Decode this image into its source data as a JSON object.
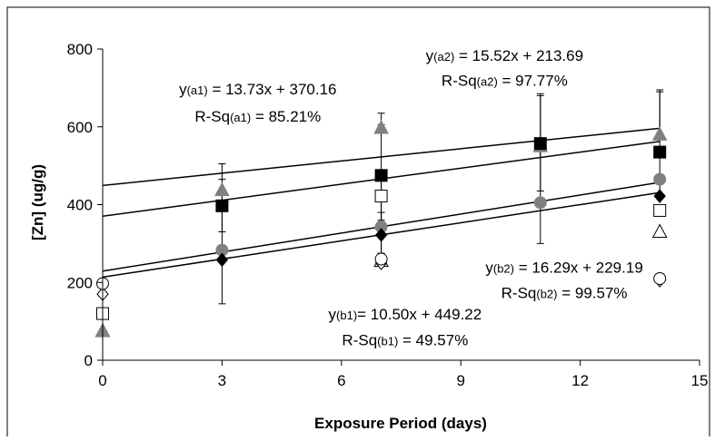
{
  "chart_data": {
    "type": "scatter",
    "xlabel": "Exposure Period (days)",
    "ylabel": "[Zn] (ug/g)",
    "xlim": [
      0,
      15
    ],
    "ylim": [
      0,
      800
    ],
    "xticks": [
      "0",
      "3",
      "6",
      "9",
      "12",
      "15"
    ],
    "yticks": [
      "0",
      "200",
      "400",
      "600",
      "800"
    ],
    "grid": false,
    "legend": "none",
    "series": [
      {
        "marker": "triangle",
        "fill": "#808080",
        "points": [
          [
            0,
            75
          ],
          [
            3,
            437
          ],
          [
            7,
            597
          ],
          [
            11,
            550
          ],
          [
            14,
            580
          ]
        ],
        "errors": [
          [
            3,
            440,
            505
          ],
          [
            7,
            597,
            635
          ],
          [
            11,
            550,
            685
          ],
          [
            14,
            580,
            695
          ]
        ]
      },
      {
        "marker": "square",
        "fill": "#000000",
        "points": [
          [
            3,
            397
          ],
          [
            7,
            475
          ],
          [
            11,
            557
          ],
          [
            14,
            535
          ]
        ],
        "errors": [
          [
            3,
            330,
            465
          ],
          [
            7,
            415,
            605
          ],
          [
            11,
            435,
            680
          ],
          [
            14,
            420,
            690
          ]
        ]
      },
      {
        "marker": "circle",
        "fill": "#808080",
        "points": [
          [
            3,
            283
          ],
          [
            7,
            343
          ],
          [
            11,
            405
          ],
          [
            14,
            465
          ]
        ],
        "errors": [
          [
            3,
            145,
            425
          ],
          [
            7,
            265,
            425
          ],
          [
            11,
            300,
            555
          ]
        ]
      },
      {
        "marker": "diamond",
        "fill": "#000000",
        "points": [
          [
            3,
            258
          ],
          [
            7,
            322
          ],
          [
            14,
            422
          ]
        ],
        "errors": [
          [
            7,
            275,
            380
          ]
        ]
      },
      {
        "marker": "square",
        "fill": "#ffffff",
        "points": [
          [
            0,
            120
          ],
          [
            7,
            422
          ],
          [
            14,
            385
          ]
        ],
        "errors": [
          [
            7,
            360,
            485
          ]
        ]
      },
      {
        "marker": "triangle",
        "fill": "#ffffff",
        "points": [
          [
            0,
            75
          ],
          [
            7,
            255
          ],
          [
            14,
            330
          ]
        ]
      },
      {
        "marker": "diamond",
        "fill": "#ffffff",
        "points": [
          [
            0,
            170
          ],
          [
            7,
            250
          ],
          [
            14,
            205
          ]
        ]
      },
      {
        "marker": "circle",
        "fill": "#ffffff",
        "points": [
          [
            0,
            197
          ],
          [
            7,
            260
          ],
          [
            14,
            210
          ]
        ]
      }
    ],
    "trendlines": [
      {
        "slope": 10.5,
        "intercept": 449.22,
        "x": [
          0,
          14
        ]
      },
      {
        "slope": 13.73,
        "intercept": 370.16,
        "x": [
          0,
          14
        ]
      },
      {
        "slope": 16.29,
        "intercept": 229.19,
        "x": [
          0,
          14
        ]
      },
      {
        "slope": 15.52,
        "intercept": 213.69,
        "x": [
          0,
          14
        ]
      }
    ],
    "annotations": [
      {
        "id": "a1",
        "x": 3.9,
        "y1": 683,
        "y2": 613,
        "line1": [
          {
            "t": "y"
          },
          {
            "t": "(a1)",
            "sub": true
          },
          {
            "t": " = 13.73x + 370.16"
          }
        ],
        "line2": [
          {
            "t": "R-Sq"
          },
          {
            "t": "(a1)",
            "sub": true
          },
          {
            "t": " = 85.21%"
          }
        ]
      },
      {
        "id": "a2",
        "x": 10.1,
        "y1": 770,
        "y2": 705,
        "line1": [
          {
            "t": "y"
          },
          {
            "t": "(a2)",
            "sub": true
          },
          {
            "t": " = 15.52x + 213.69"
          }
        ],
        "line2": [
          {
            "t": "R-Sq"
          },
          {
            "t": "(a2)",
            "sub": true
          },
          {
            "t": " = 97.77%"
          }
        ]
      },
      {
        "id": "b2",
        "x": 11.6,
        "y1": 225,
        "y2": 160,
        "line1": [
          {
            "t": "y"
          },
          {
            "t": "(b2)",
            "sub": true
          },
          {
            "t": " = 16.29x + 229.19"
          }
        ],
        "line2": [
          {
            "t": "R-Sq"
          },
          {
            "t": "(b2)",
            "sub": true
          },
          {
            "t": " = 99.57%"
          }
        ]
      },
      {
        "id": "b1",
        "x": 7.6,
        "y1": 105,
        "y2": 38,
        "line1": [
          {
            "t": "y"
          },
          {
            "t": "(b1)",
            "sub": true
          },
          {
            "t": "= 10.50x + 449.22"
          }
        ],
        "line2": [
          {
            "t": "R-Sq"
          },
          {
            "t": "(b1)",
            "sub": true
          },
          {
            "t": " = 49.57%"
          }
        ]
      }
    ]
  }
}
